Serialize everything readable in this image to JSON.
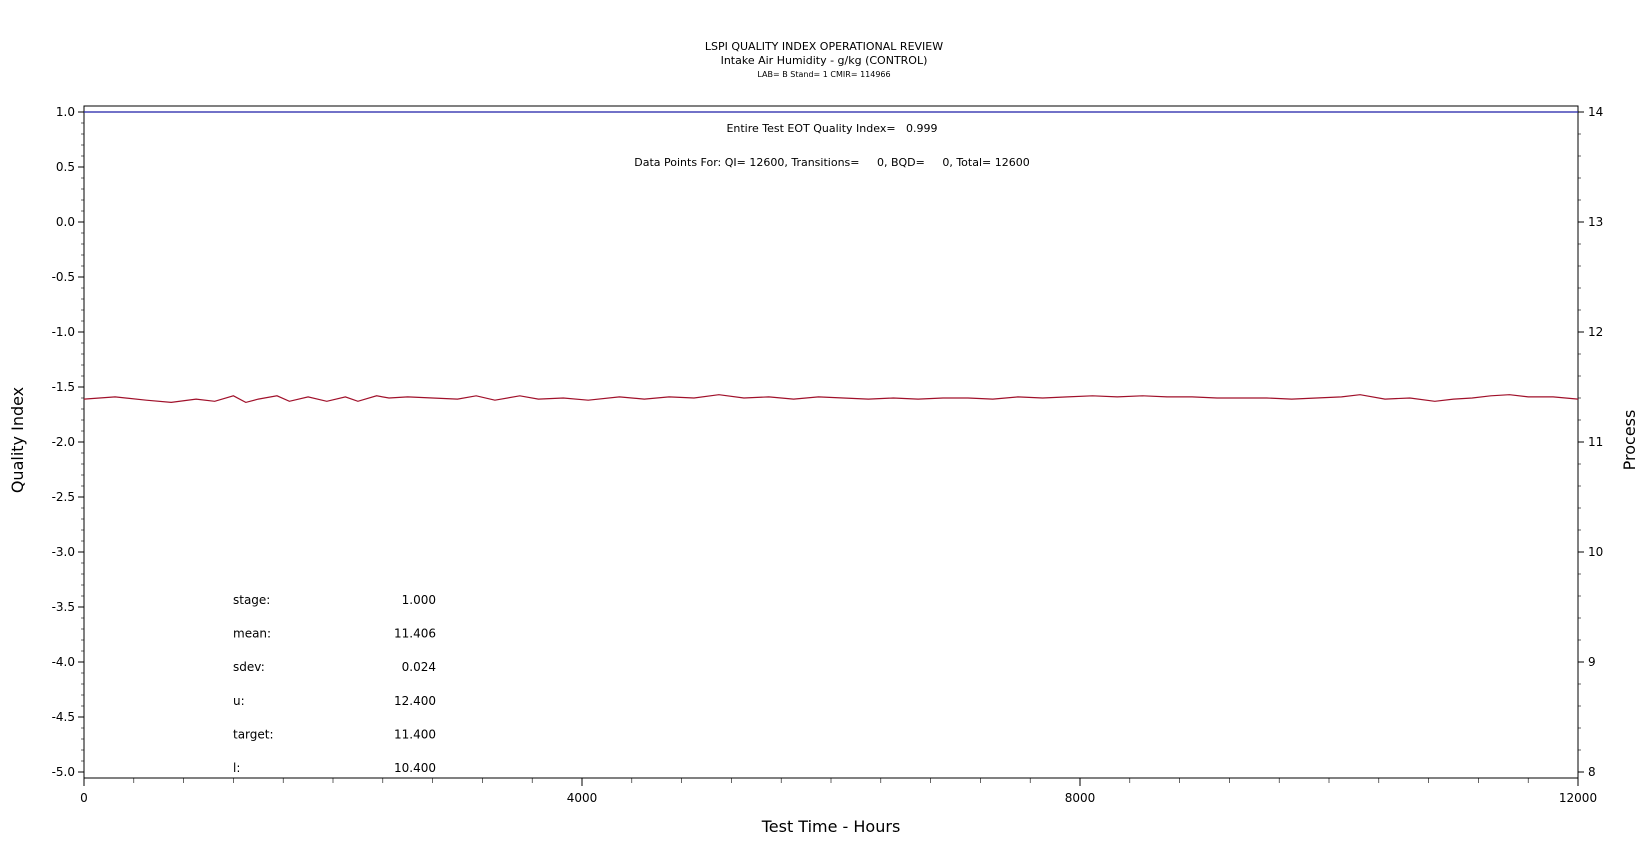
{
  "chart_data": {
    "type": "line",
    "title": "LSPI QUALITY INDEX OPERATIONAL REVIEW",
    "subtitle": "Intake Air Humidity - g/kg (CONTROL)",
    "subtitle2": "LAB= B Stand= 1 CMIR= 114966",
    "xlabel": "Test Time - Hours",
    "ylabel_left": "Quality Index",
    "ylabel_right": "Process",
    "xlim": [
      0,
      12000
    ],
    "ylim_left": [
      -5.0,
      1.0
    ],
    "ylim_right": [
      8,
      14
    ],
    "x_ticks": [
      "0",
      "4000",
      "8000",
      "12000"
    ],
    "y_left_ticks": [
      "1.0",
      "0.5",
      "0.0",
      "-0.5",
      "-1.0",
      "-1.5",
      "-2.0",
      "-2.5",
      "-3.0",
      "-3.5",
      "-4.0",
      "-4.5",
      "-5.0"
    ],
    "y_right_ticks": [
      "14",
      "13",
      "12",
      "11",
      "10",
      "9",
      "8"
    ],
    "annotation_quality": "Entire Test EOT Quality Index=   0.999",
    "annotation_points": "Data Points For: QI= 12600, Transitions=     0, BQD=     0, Total= 12600",
    "stats": [
      {
        "label": "stage:",
        "value": "1.000"
      },
      {
        "label": "mean:",
        "value": "11.406"
      },
      {
        "label": "sdev:",
        "value": "0.024"
      },
      {
        "label": "u:",
        "value": "12.400"
      },
      {
        "label": "target:",
        "value": "11.400"
      },
      {
        "label": "l:",
        "value": "10.400"
      }
    ],
    "series": [
      {
        "axis": "left",
        "color": "#1f1fa8",
        "x": [
          0,
          12000
        ],
        "y": [
          1.0,
          1.0
        ]
      },
      {
        "axis": "right",
        "color": "#a0102a",
        "x": [
          0,
          250,
          500,
          700,
          900,
          1050,
          1200,
          1300,
          1400,
          1550,
          1650,
          1800,
          1950,
          2100,
          2200,
          2350,
          2450,
          2600,
          2800,
          3000,
          3150,
          3300,
          3500,
          3650,
          3850,
          4050,
          4300,
          4500,
          4700,
          4900,
          5100,
          5300,
          5500,
          5700,
          5900,
          6100,
          6300,
          6500,
          6700,
          6900,
          7100,
          7300,
          7500,
          7700,
          7900,
          8100,
          8300,
          8500,
          8700,
          8900,
          9100,
          9300,
          9500,
          9700,
          9900,
          10100,
          10250,
          10450,
          10650,
          10850,
          11000,
          11150,
          11300,
          11450,
          11600,
          11800,
          12000
        ],
        "y": [
          11.39,
          11.41,
          11.38,
          11.36,
          11.39,
          11.37,
          11.42,
          11.36,
          11.39,
          11.42,
          11.37,
          11.41,
          11.37,
          11.41,
          11.37,
          11.42,
          11.4,
          11.41,
          11.4,
          11.39,
          11.42,
          11.38,
          11.42,
          11.39,
          11.4,
          11.38,
          11.41,
          11.39,
          11.41,
          11.4,
          11.43,
          11.4,
          11.41,
          11.39,
          11.41,
          11.4,
          11.39,
          11.4,
          11.39,
          11.4,
          11.4,
          11.39,
          11.41,
          11.4,
          11.41,
          11.42,
          11.41,
          11.42,
          11.41,
          11.41,
          11.4,
          11.4,
          11.4,
          11.39,
          11.4,
          11.41,
          11.43,
          11.39,
          11.4,
          11.37,
          11.39,
          11.4,
          11.42,
          11.43,
          11.41,
          11.41,
          11.39
        ]
      }
    ]
  }
}
